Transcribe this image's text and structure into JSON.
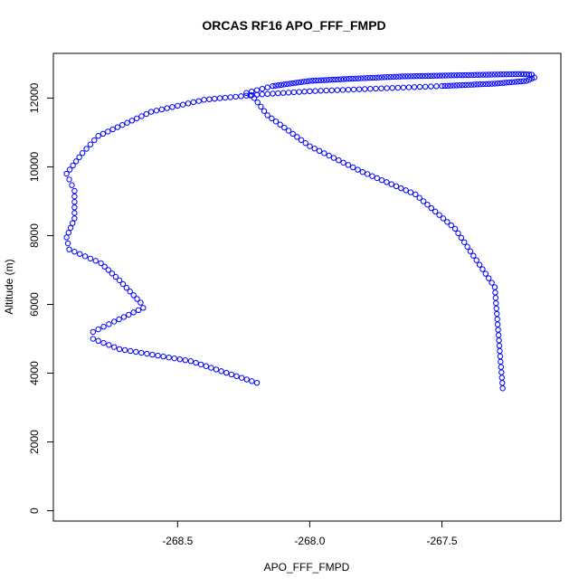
{
  "chart_data": {
    "type": "scatter",
    "title": "ORCAS RF16 APO_FFF_FMPD",
    "xlabel": "APO_FFF_FMPD",
    "ylabel": "Altitude (m)",
    "xlim": [
      -268.97,
      -267.05
    ],
    "ylim": [
      -300,
      13300
    ],
    "x_ticks": [
      -268.5,
      -268.0,
      -267.5
    ],
    "x_tick_labels": [
      "-268.5",
      "-268.0",
      "-267.5"
    ],
    "y_ticks": [
      0,
      2000,
      4000,
      6000,
      8000,
      10000,
      12000
    ],
    "y_tick_labels": [
      "0",
      "2000",
      "4000",
      "6000",
      "8000",
      "10000",
      "12000"
    ],
    "grid": false,
    "marker": "open-circle",
    "series_color": "#0000ff",
    "vertex_path": {
      "x": [
        -268.2,
        -268.45,
        -268.72,
        -268.82,
        -268.82,
        -268.74,
        -268.63,
        -268.64,
        -268.72,
        -268.79,
        -268.91,
        -268.92,
        -268.89,
        -268.89,
        -268.92,
        -268.86,
        -268.8,
        -268.6,
        -268.4,
        -268.2,
        -268.0,
        -267.5,
        -267.3,
        -267.18,
        -267.15,
        -267.16,
        -267.2,
        -267.4,
        -267.65,
        -267.85,
        -268.0,
        -268.14,
        -268.24,
        -268.21,
        -268.16,
        -268.0,
        -267.8,
        -267.6,
        -267.45,
        -267.3,
        -267.27
      ],
      "y": [
        3720,
        4350,
        4700,
        5000,
        5200,
        5500,
        5900,
        6050,
        6700,
        7200,
        7600,
        7950,
        8500,
        9300,
        9800,
        10400,
        10900,
        11600,
        11950,
        12100,
        12200,
        12350,
        12420,
        12500,
        12600,
        12680,
        12700,
        12670,
        12630,
        12560,
        12500,
        12350,
        12150,
        12000,
        11500,
        10600,
        9850,
        9200,
        8200,
        6500,
        3560
      ]
    }
  }
}
